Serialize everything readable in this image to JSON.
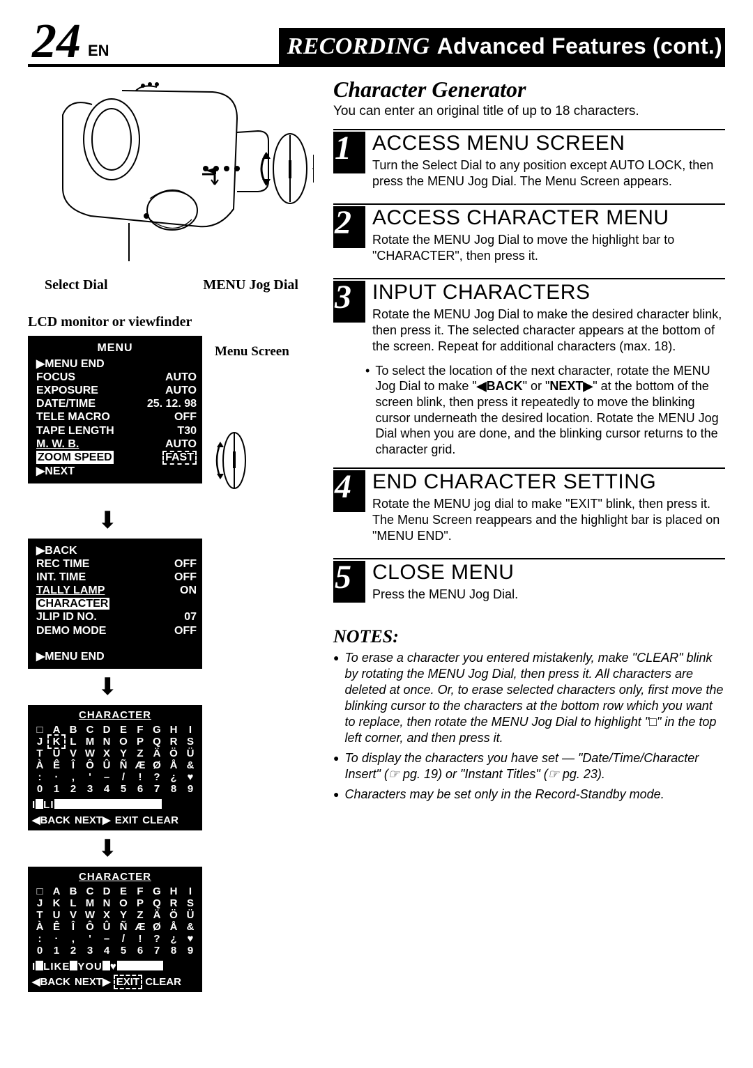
{
  "header": {
    "page_num": "24",
    "lang": "EN",
    "title_italic": "RECORDING",
    "title_rest": "Advanced Features (cont.)"
  },
  "left": {
    "select_dial": "Select Dial",
    "jog_dial": "MENU Jog Dial",
    "lcd_caption": "LCD monitor or viewfinder",
    "menu_screen_label": "Menu Screen",
    "menu1": {
      "title": "MENU",
      "items": [
        {
          "l": "▶MENU END",
          "r": ""
        },
        {
          "l": "FOCUS",
          "r": "AUTO"
        },
        {
          "l": "EXPOSURE",
          "r": "AUTO"
        },
        {
          "l": "DATE/TIME",
          "r": "25. 12. 98"
        },
        {
          "l": "TELE MACRO",
          "r": "OFF"
        },
        {
          "l": "TAPE LENGTH",
          "r": "T30"
        },
        {
          "l": "M. W. B.",
          "r": "AUTO",
          "underline": true
        },
        {
          "l": "ZOOM SPEED",
          "r": "FAST",
          "hl_l": true,
          "dashed_r": true
        },
        {
          "l": "▶NEXT",
          "r": ""
        }
      ]
    },
    "menu2": {
      "items": [
        {
          "l": "▶BACK",
          "r": ""
        },
        {
          "l": "REC TIME",
          "r": "OFF"
        },
        {
          "l": "INT. TIME",
          "r": "OFF"
        },
        {
          "l": "TALLY LAMP",
          "r": "ON",
          "underline": true
        },
        {
          "l": "CHARACTER",
          "r": "",
          "hl_l": true
        },
        {
          "l": "JLIP ID NO.",
          "r": "07"
        },
        {
          "l": "DEMO MODE",
          "r": "OFF"
        }
      ],
      "footer": "▶MENU END"
    },
    "char1": {
      "title": "CHARACTER",
      "rows": [
        [
          "□",
          "A",
          "B",
          "C",
          "D",
          "E",
          "F",
          "G",
          "H",
          "I"
        ],
        [
          "J",
          "K",
          "L",
          "M",
          "N",
          "O",
          "P",
          "Q",
          "R",
          "S"
        ],
        [
          "T",
          "U",
          "V",
          "W",
          "X",
          "Y",
          "Z",
          "Ä",
          "Ö",
          "Ü"
        ],
        [
          "À",
          "Ê",
          "Î",
          "Ô",
          "Û",
          "Ñ",
          "Æ",
          "Ø",
          "Å",
          "&"
        ],
        [
          ":",
          "·",
          ",",
          "'",
          "–",
          "/",
          "!",
          "?",
          "¿",
          "♥"
        ],
        [
          "0",
          "1",
          "2",
          "3",
          "4",
          "5",
          "6",
          "7",
          "8",
          "9"
        ]
      ],
      "sel_row": 1,
      "sel_col": 1,
      "input": "I□LI",
      "boxes": 14,
      "cmds": "◀BACK NEXT▶ EXIT CLEAR"
    },
    "char2": {
      "title": "CHARACTER",
      "rows": [
        [
          "□",
          "A",
          "B",
          "C",
          "D",
          "E",
          "F",
          "G",
          "H",
          "I"
        ],
        [
          "J",
          "K",
          "L",
          "M",
          "N",
          "O",
          "P",
          "Q",
          "R",
          "S"
        ],
        [
          "T",
          "U",
          "V",
          "W",
          "X",
          "Y",
          "Z",
          "Ä",
          "Ö",
          "Ü"
        ],
        [
          "À",
          "Ê",
          "Î",
          "Ô",
          "Û",
          "Ñ",
          "Æ",
          "Ø",
          "Å",
          "&"
        ],
        [
          ":",
          "·",
          ",",
          "'",
          "–",
          "/",
          "!",
          "?",
          "¿",
          "♥"
        ],
        [
          "0",
          "1",
          "2",
          "3",
          "4",
          "5",
          "6",
          "7",
          "8",
          "9"
        ]
      ],
      "input": "I□LIKE□YOU□♥",
      "boxes": 6,
      "cmds": "◀BACK NEXT▶ EXIT CLEAR",
      "exit_sel": true
    }
  },
  "right": {
    "title": "Character Generator",
    "sub": "You can enter an original title of up to 18 characters.",
    "steps": [
      {
        "n": "1",
        "head": "ACCESS MENU SCREEN",
        "body": "Turn the Select Dial to any position except AUTO LOCK, then press the MENU Jog Dial. The Menu Screen appears."
      },
      {
        "n": "2",
        "head": "ACCESS CHARACTER MENU",
        "body": "Rotate the MENU Jog Dial to move the highlight bar to \"CHARACTER\", then press it."
      },
      {
        "n": "3",
        "head": "INPUT CHARACTERS",
        "body": "Rotate the MENU Jog Dial to make the desired character blink, then press it. The selected character appears at the bottom of the screen. Repeat for additional characters (max. 18).",
        "bullet": "To select the location of the next character, rotate the MENU Jog Dial to make \"◀BACK\" or \"NEXT▶\" at the bottom of the screen blink, then press it repeatedly to move the blinking cursor underneath the desired location. Rotate the MENU Jog Dial when you are done, and the blinking cursor returns to the character grid."
      },
      {
        "n": "4",
        "head": "END CHARACTER SETTING",
        "body": "Rotate the MENU jog dial to make \"EXIT\" blink, then press it. The Menu Screen reappears and the highlight bar is placed on \"MENU END\"."
      },
      {
        "n": "5",
        "head": "CLOSE MENU",
        "body": "Press the MENU Jog Dial."
      }
    ],
    "notes_head": "NOTES:",
    "notes": [
      "To erase a character you entered mistakenly, make \"CLEAR\" blink by rotating the MENU Jog Dial, then press it. All characters are deleted at once. Or, to erase selected characters only, first move the blinking cursor to the characters at the bottom row which you want to replace, then rotate the MENU Jog Dial to highlight \"□\" in the top left corner, and then press it.",
      "To display the characters you have set — \"Date/Time/Character Insert\" (☞ pg. 19) or \"Instant Titles\" (☞ pg. 23).",
      "Characters may be set only in the Record-Standby mode."
    ]
  }
}
